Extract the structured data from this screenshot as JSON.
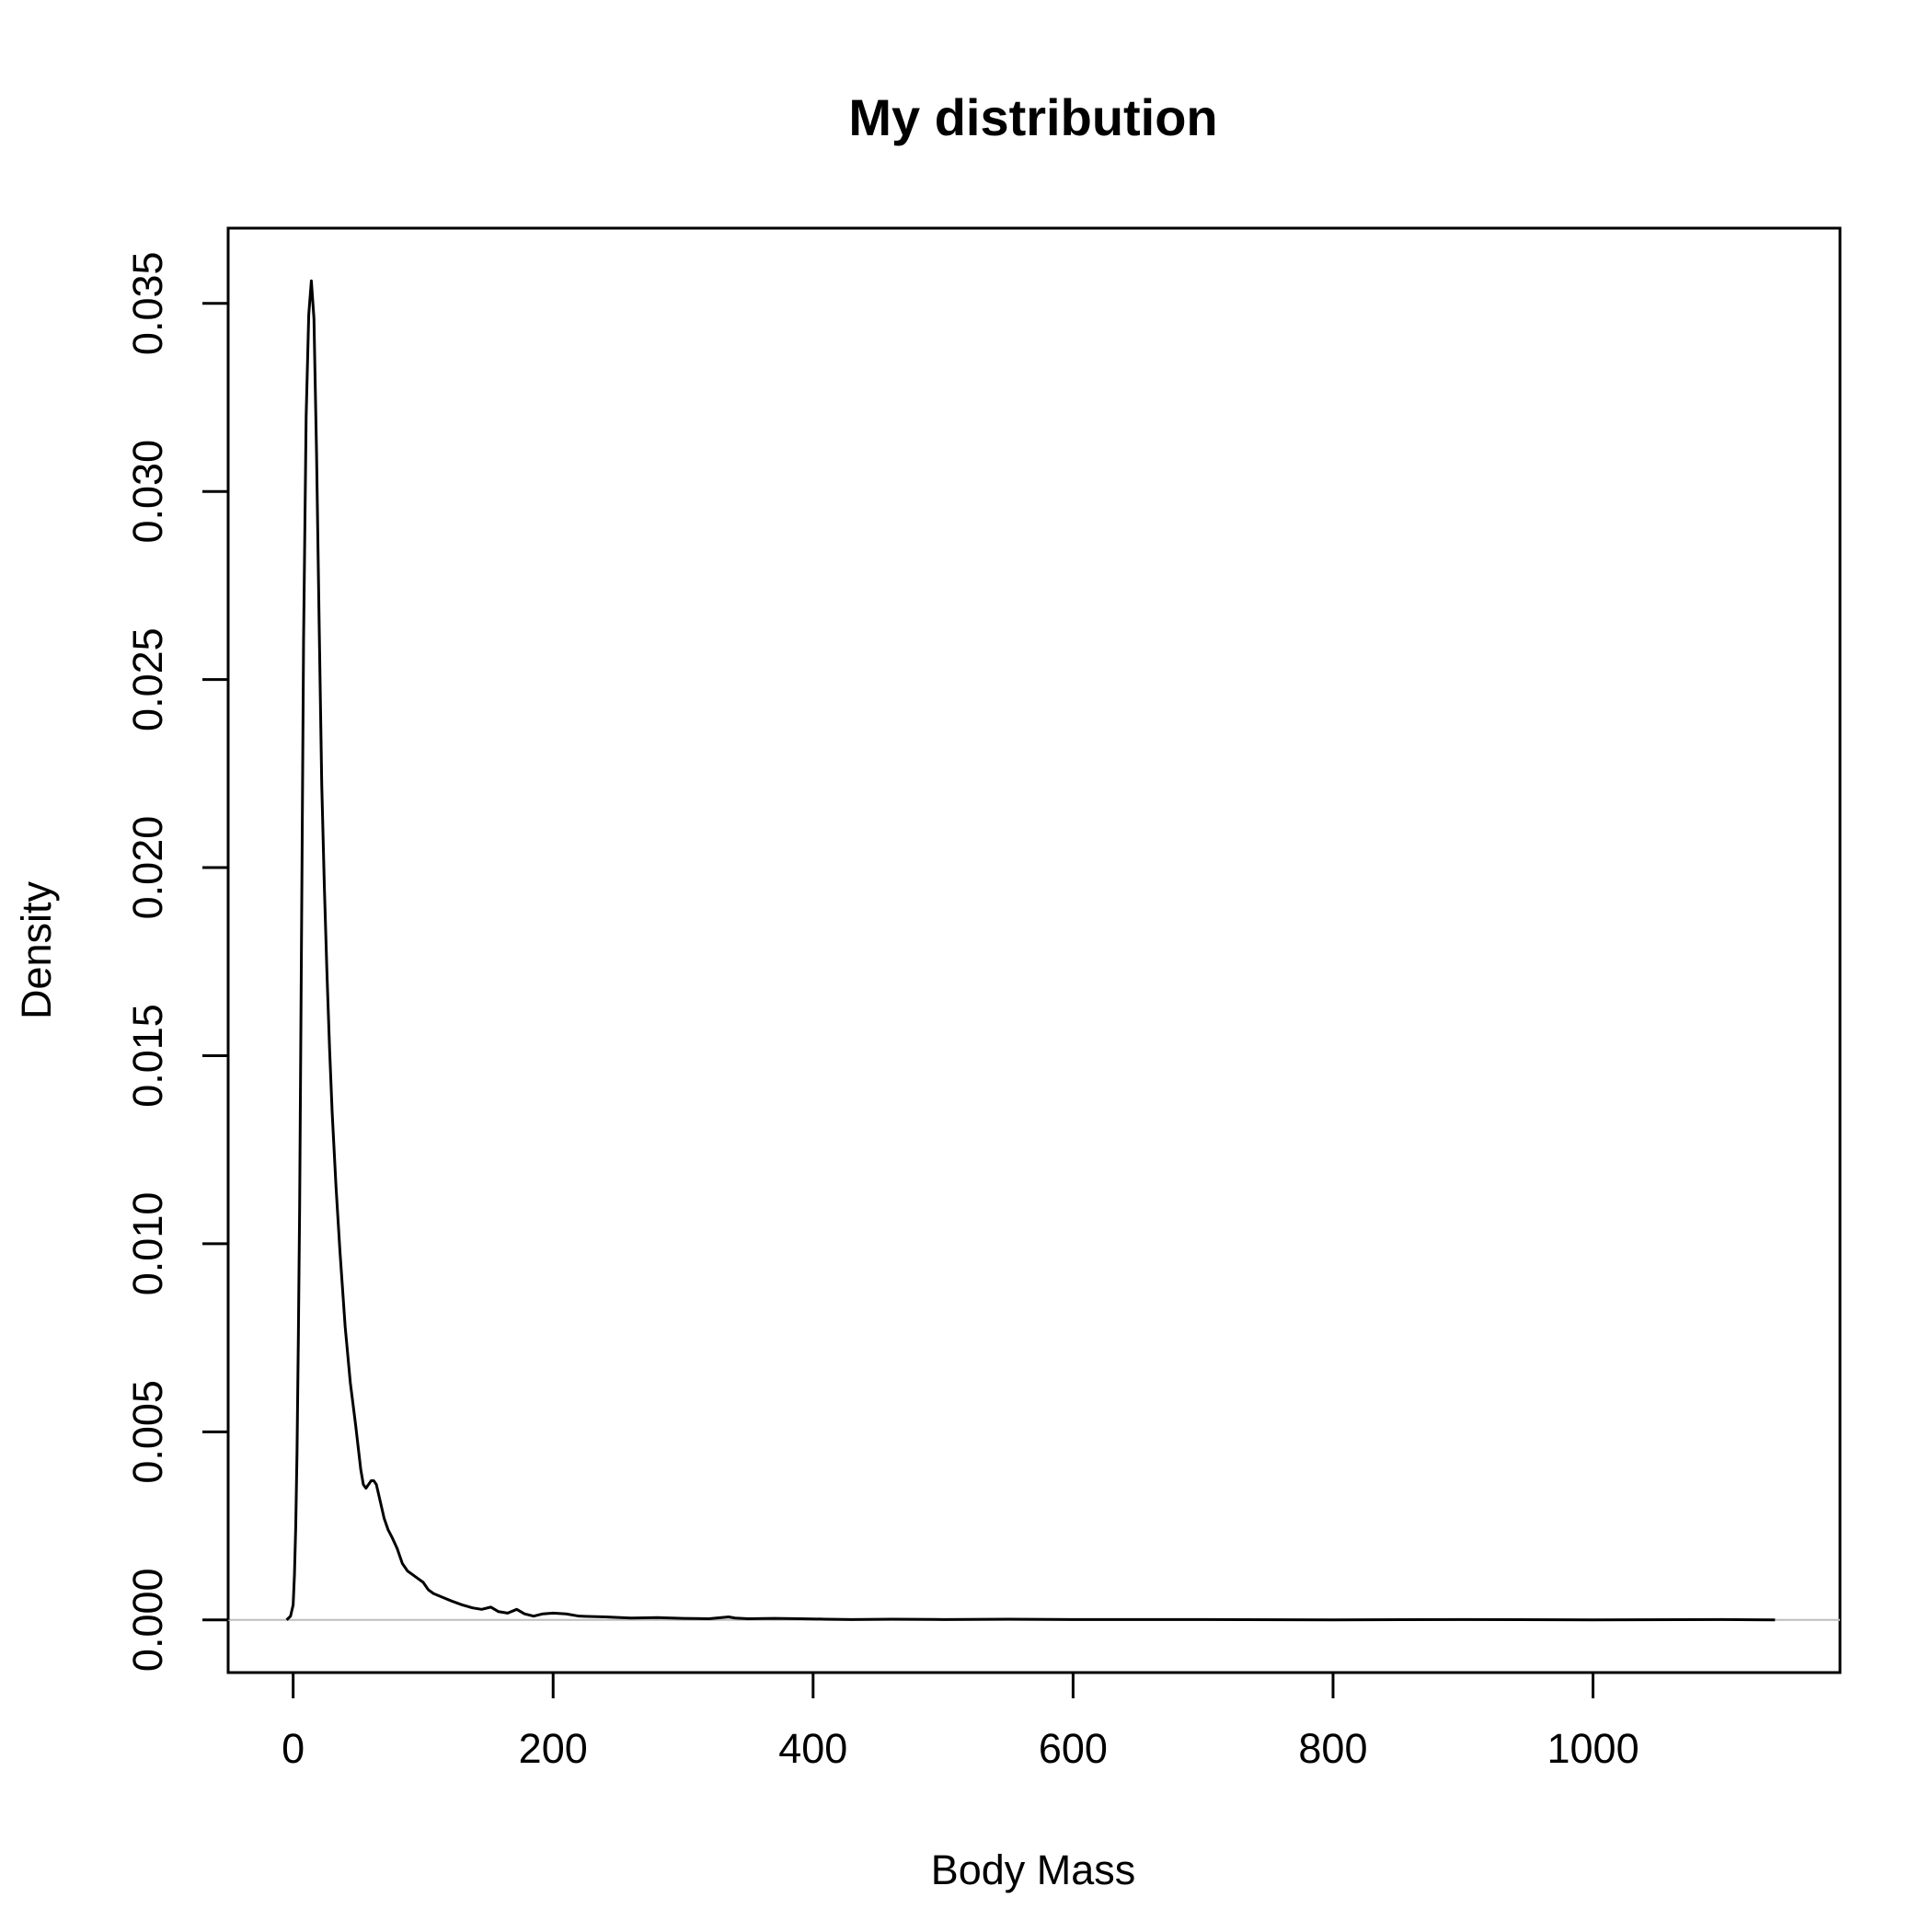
{
  "chart_data": {
    "type": "line",
    "title": "My distribution",
    "xlabel": "Body Mass",
    "ylabel": "Density",
    "xlim": [
      -50,
      1190
    ],
    "ylim": [
      -0.0014,
      0.037
    ],
    "x_ticks": [
      0,
      200,
      400,
      600,
      800,
      1000
    ],
    "x_tick_labels": [
      "0",
      "200",
      "400",
      "600",
      "800",
      "1000"
    ],
    "y_ticks": [
      0.0,
      0.005,
      0.01,
      0.015,
      0.02,
      0.025,
      0.03,
      0.035
    ],
    "y_tick_labels": [
      "0.000",
      "0.005",
      "0.010",
      "0.015",
      "0.020",
      "0.025",
      "0.030",
      "0.035"
    ],
    "grid": false,
    "legend": "none",
    "baseline": 0,
    "colors": {
      "line": "#000000",
      "baseline": "#bebebe",
      "frame": "#000000"
    },
    "series": [
      {
        "x": [
          -5,
          -2,
          0,
          1,
          2,
          3,
          4,
          5,
          6,
          7,
          8,
          10,
          12,
          14,
          16,
          18,
          20,
          22,
          24,
          26,
          28,
          30,
          33,
          36,
          40,
          44,
          48,
          50,
          52,
          54,
          56,
          58,
          60,
          62,
          64,
          66,
          68,
          70,
          73,
          76,
          80,
          84,
          88,
          92,
          96,
          100,
          104,
          108,
          115,
          122,
          130,
          138,
          145,
          152,
          158,
          165,
          172,
          178,
          185,
          192,
          200,
          210,
          220,
          240,
          260,
          280,
          300,
          320,
          335,
          340,
          350,
          370,
          390,
          410,
          430,
          460,
          500,
          550,
          600,
          700,
          800,
          900,
          1000,
          1100,
          1140
        ],
        "y": [
          0.0,
          0.0001,
          0.0004,
          0.0012,
          0.0025,
          0.0045,
          0.0075,
          0.011,
          0.016,
          0.021,
          0.026,
          0.032,
          0.0347,
          0.0356,
          0.0346,
          0.031,
          0.0265,
          0.0222,
          0.0195,
          0.0172,
          0.0152,
          0.0135,
          0.0115,
          0.0098,
          0.0078,
          0.0063,
          0.0052,
          0.0046,
          0.004,
          0.0036,
          0.0035,
          0.0036,
          0.0037,
          0.0037,
          0.0036,
          0.0033,
          0.003,
          0.0027,
          0.0024,
          0.0022,
          0.0019,
          0.0015,
          0.0013,
          0.0012,
          0.0011,
          0.001,
          0.0008,
          0.0007,
          0.0006,
          0.0005,
          0.0004,
          0.00032,
          0.00028,
          0.00034,
          0.00022,
          0.00018,
          0.00028,
          0.00016,
          0.0001,
          0.00016,
          0.00018,
          0.00016,
          0.0001,
          8e-05,
          5e-05,
          6e-05,
          4e-05,
          3e-05,
          8e-05,
          5e-05,
          3e-05,
          4e-05,
          3e-05,
          2e-05,
          1e-05,
          2e-05,
          1e-05,
          2e-05,
          1e-05,
          1e-05,
          0.0,
          1e-05,
          0.0,
          1e-05,
          0.0
        ]
      }
    ]
  }
}
